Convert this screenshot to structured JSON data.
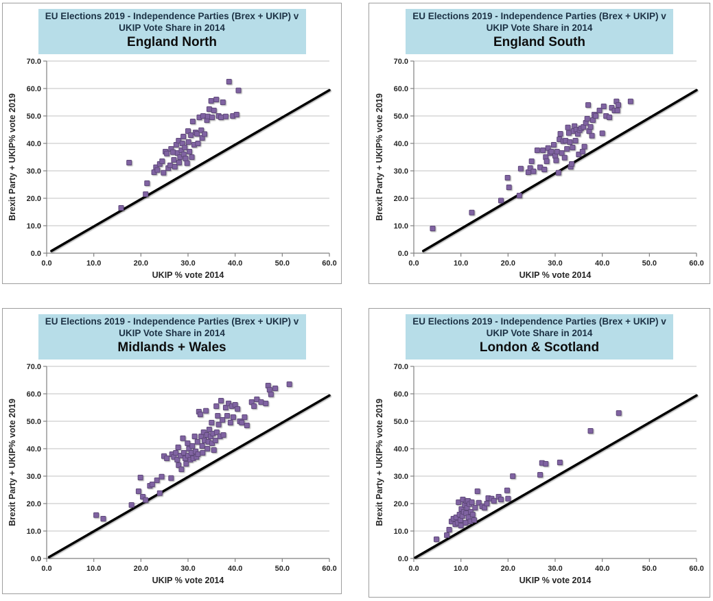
{
  "styles": {
    "header_bg": "#b7dde8",
    "header_text": "#1c3144",
    "region_text": "#0d0d0d",
    "marker_fill": "#8064a2",
    "marker_edge": "#5f497a",
    "grid_color": "#c0c0c0",
    "axis_color": "#808080",
    "tick_text": "#262626",
    "diag_color": "#000000",
    "panel_border": "#9d9d9d"
  },
  "chart_data": [
    {
      "type": "scatter",
      "title_line1": "EU Elections 2019  - Independence Parties (Brex + UKIP)  v",
      "title_line2": "UKIP  Vote Share in 2014",
      "region": "England North",
      "xlabel": "UKIP  % vote 2014",
      "ylabel": "Brexit Party + UKIP% vote  2019",
      "xlim": [
        0,
        60
      ],
      "ylim": [
        0,
        70
      ],
      "xtick_step": 10,
      "ytick_step": 10,
      "grid": "horizontal",
      "legend": "none",
      "diagonal": [
        [
          1,
          0.8
        ],
        [
          60,
          59.4
        ]
      ],
      "points": [
        [
          15.8,
          16.5
        ],
        [
          17.5,
          33
        ],
        [
          21,
          21.5
        ],
        [
          21.3,
          25.5
        ],
        [
          22.8,
          29.5
        ],
        [
          23.2,
          31.3
        ],
        [
          23.5,
          30.3
        ],
        [
          24,
          32.5
        ],
        [
          24.5,
          33.5
        ],
        [
          24.8,
          29.3
        ],
        [
          25.2,
          37
        ],
        [
          25.5,
          36.3
        ],
        [
          25.8,
          31
        ],
        [
          26.2,
          32
        ],
        [
          26.4,
          38
        ],
        [
          26.8,
          36.8
        ],
        [
          27,
          34
        ],
        [
          27.2,
          31.5
        ],
        [
          27.5,
          39.5
        ],
        [
          27.8,
          36.5
        ],
        [
          28,
          41
        ],
        [
          28.1,
          33
        ],
        [
          28.3,
          35
        ],
        [
          28.6,
          37.5
        ],
        [
          28.8,
          40
        ],
        [
          29,
          42.5
        ],
        [
          29.1,
          36
        ],
        [
          29.3,
          38.5
        ],
        [
          29.5,
          34.5
        ],
        [
          29.8,
          32.8
        ],
        [
          30,
          44.5
        ],
        [
          30.1,
          40.5
        ],
        [
          30.3,
          37
        ],
        [
          30.6,
          43
        ],
        [
          30.8,
          35
        ],
        [
          31,
          48
        ],
        [
          31.3,
          39.5
        ],
        [
          31.6,
          44
        ],
        [
          31.9,
          43.5
        ],
        [
          32.1,
          40
        ],
        [
          32.4,
          49.5
        ],
        [
          32.8,
          44.8
        ],
        [
          33,
          42
        ],
        [
          33.2,
          50
        ],
        [
          33.5,
          43.4
        ],
        [
          34,
          48.5
        ],
        [
          34.2,
          49.8
        ],
        [
          34.5,
          52.5
        ],
        [
          34.9,
          55.5
        ],
        [
          35.1,
          49.5
        ],
        [
          35.5,
          52
        ],
        [
          36,
          56
        ],
        [
          36.5,
          50
        ],
        [
          37,
          49.5
        ],
        [
          37.4,
          55
        ],
        [
          38,
          49.8
        ],
        [
          38.7,
          62.5
        ],
        [
          39.5,
          50
        ],
        [
          40.3,
          50.5
        ],
        [
          40.7,
          59.3
        ]
      ]
    },
    {
      "type": "scatter",
      "title_line1": "EU Elections 2019  - Independence Parties (Brex + UKIP)  v",
      "title_line2": "UKIP  Vote Share in 2014",
      "region": "England South",
      "xlabel": "UKIP  % vote 2014",
      "ylabel": "Brexit Party + UKIP% vote  2019",
      "xlim": [
        0,
        60
      ],
      "ylim": [
        0,
        70
      ],
      "xtick_step": 10,
      "ytick_step": 10,
      "grid": "horizontal",
      "legend": "none",
      "diagonal": [
        [
          2,
          0.8
        ],
        [
          60,
          59.4
        ]
      ],
      "points": [
        [
          4,
          9
        ],
        [
          12.3,
          14.8
        ],
        [
          18.5,
          19.2
        ],
        [
          19.9,
          27.5
        ],
        [
          20.2,
          24
        ],
        [
          22.4,
          21
        ],
        [
          22.7,
          30.8
        ],
        [
          24.3,
          29.5
        ],
        [
          24.7,
          31
        ],
        [
          25,
          33.5
        ],
        [
          25.4,
          29.8
        ],
        [
          26.2,
          37.5
        ],
        [
          26.8,
          31.3
        ],
        [
          27.4,
          37.5
        ],
        [
          27.7,
          30.5
        ],
        [
          28,
          35
        ],
        [
          28.2,
          33.5
        ],
        [
          28.5,
          38.3
        ],
        [
          28.9,
          36.5
        ],
        [
          29.2,
          37
        ],
        [
          29.7,
          39.5
        ],
        [
          30,
          35.5
        ],
        [
          30.2,
          33.8
        ],
        [
          30.4,
          37
        ],
        [
          30.7,
          29.3
        ],
        [
          30.9,
          41.5
        ],
        [
          31.1,
          43.5
        ],
        [
          31.4,
          36.5
        ],
        [
          31.7,
          40.8
        ],
        [
          32,
          34.8
        ],
        [
          32.2,
          41
        ],
        [
          32.5,
          38
        ],
        [
          32.7,
          45.8
        ],
        [
          32.9,
          43.8
        ],
        [
          33.1,
          40.5
        ],
        [
          33.3,
          31.5
        ],
        [
          33.5,
          32.5
        ],
        [
          33.7,
          38.5
        ],
        [
          33.9,
          44.5
        ],
        [
          34.1,
          46.3
        ],
        [
          34.3,
          41
        ],
        [
          34.5,
          45
        ],
        [
          34.8,
          43.5
        ],
        [
          35,
          36
        ],
        [
          35.2,
          44.8
        ],
        [
          35.5,
          45.5
        ],
        [
          35.8,
          37
        ],
        [
          36,
          46
        ],
        [
          36.2,
          38.8
        ],
        [
          36.5,
          47.5
        ],
        [
          36.8,
          49
        ],
        [
          37,
          54
        ],
        [
          37.2,
          44.5
        ],
        [
          37.5,
          46
        ],
        [
          37.8,
          42.8
        ],
        [
          38,
          48.5
        ],
        [
          38.3,
          50.5
        ],
        [
          38.6,
          50
        ],
        [
          39.4,
          52
        ],
        [
          40,
          43.7
        ],
        [
          40.3,
          53.5
        ],
        [
          40.8,
          50
        ],
        [
          41.5,
          49.5
        ],
        [
          42,
          53
        ],
        [
          42.6,
          52
        ],
        [
          43,
          55.3
        ],
        [
          43.2,
          52
        ],
        [
          43.4,
          54
        ],
        [
          46,
          55.3
        ]
      ]
    },
    {
      "type": "scatter",
      "title_line1": "EU Elections 2019  - Independence Parties (Brex + UKIP)  v",
      "title_line2": "UKIP  Vote Share in 2014",
      "region": "Midlands + Wales",
      "xlabel": "UKIP  % vote 2014",
      "ylabel": "Brexit Party + UKIP% vote  2019",
      "xlim": [
        0,
        60
      ],
      "ylim": [
        0,
        70
      ],
      "xtick_step": 10,
      "ytick_step": 10,
      "grid": "horizontal",
      "legend": "none",
      "diagonal": [
        [
          0.5,
          0.5
        ],
        [
          60,
          59.4
        ]
      ],
      "points": [
        [
          10.5,
          15.8
        ],
        [
          12,
          14.5
        ],
        [
          18,
          19.5
        ],
        [
          19.5,
          24.5
        ],
        [
          19.9,
          29.5
        ],
        [
          20.4,
          22.5
        ],
        [
          21,
          21.3
        ],
        [
          21.9,
          26.5
        ],
        [
          22.4,
          27
        ],
        [
          23.4,
          28.5
        ],
        [
          24,
          23.8
        ],
        [
          24.4,
          29.8
        ],
        [
          24.9,
          37.3
        ],
        [
          25.5,
          36.5
        ],
        [
          26.4,
          29.3
        ],
        [
          26.6,
          38
        ],
        [
          27,
          37
        ],
        [
          27.4,
          38.5
        ],
        [
          27.7,
          36
        ],
        [
          27.9,
          40.5
        ],
        [
          28,
          34
        ],
        [
          28.4,
          37.5
        ],
        [
          28.6,
          32.5
        ],
        [
          28.9,
          43.8
        ],
        [
          29.1,
          38.5
        ],
        [
          29.4,
          36.5
        ],
        [
          29.6,
          34.5
        ],
        [
          29.9,
          42
        ],
        [
          30,
          37.5
        ],
        [
          30.2,
          40
        ],
        [
          30.5,
          36
        ],
        [
          30.7,
          38.5
        ],
        [
          30.9,
          41
        ],
        [
          31.1,
          36.5
        ],
        [
          31.4,
          44.5
        ],
        [
          31.6,
          39
        ],
        [
          31.8,
          37
        ],
        [
          32,
          42.5
        ],
        [
          32.1,
          38
        ],
        [
          32.3,
          53.5
        ],
        [
          32.6,
          52.5
        ],
        [
          32.8,
          44.5
        ],
        [
          33,
          41
        ],
        [
          33.1,
          38.5
        ],
        [
          33.3,
          46
        ],
        [
          33.5,
          43
        ],
        [
          33.8,
          53.8
        ],
        [
          34,
          45
        ],
        [
          34.1,
          40
        ],
        [
          34.3,
          42.5
        ],
        [
          34.5,
          47
        ],
        [
          34.8,
          44.5
        ],
        [
          35,
          49.5
        ],
        [
          35.1,
          42
        ],
        [
          35.3,
          45.5
        ],
        [
          35.5,
          39.5
        ],
        [
          35.8,
          43
        ],
        [
          36,
          55.5
        ],
        [
          36.1,
          46
        ],
        [
          36.3,
          52
        ],
        [
          36.5,
          48.8
        ],
        [
          36.8,
          44.5
        ],
        [
          37,
          57.5
        ],
        [
          37.3,
          50.5
        ],
        [
          37.5,
          45
        ],
        [
          38,
          55
        ],
        [
          38.3,
          52
        ],
        [
          38.6,
          56.5
        ],
        [
          39,
          49.5
        ],
        [
          39.3,
          55.5
        ],
        [
          39.6,
          51.5
        ],
        [
          40,
          56
        ],
        [
          40.5,
          54.5
        ],
        [
          41,
          50
        ],
        [
          41.4,
          49.5
        ],
        [
          42,
          51.5
        ],
        [
          42.5,
          48.5
        ],
        [
          43.5,
          57
        ],
        [
          44,
          55.5
        ],
        [
          44.6,
          58
        ],
        [
          45.5,
          57
        ],
        [
          46.5,
          56.5
        ],
        [
          47,
          63
        ],
        [
          47.3,
          61.5
        ],
        [
          47.6,
          59.8
        ],
        [
          48.5,
          62
        ],
        [
          51.5,
          63.5
        ]
      ]
    },
    {
      "type": "scatter",
      "title_line1": "EU Elections 2019  - Independence Parties (Brex + UKIP)  v",
      "title_line2": "UKIP  Vote Share in 2014",
      "region": "London  & Scotland",
      "xlabel": "UKIP  % vote 2014",
      "ylabel": "Brexit Party + UKIP% vote  2019",
      "xlim": [
        0,
        60
      ],
      "ylim": [
        0,
        70
      ],
      "xtick_step": 10,
      "ytick_step": 10,
      "grid": "horizontal",
      "legend": "none",
      "diagonal": [
        [
          0.3,
          0.3
        ],
        [
          60,
          59.4
        ]
      ],
      "points": [
        [
          4.8,
          7
        ],
        [
          7,
          8.5
        ],
        [
          7.5,
          10.5
        ],
        [
          8,
          13.5
        ],
        [
          8.4,
          14.5
        ],
        [
          8.8,
          12.5
        ],
        [
          9,
          15
        ],
        [
          9.3,
          13
        ],
        [
          9.5,
          20.5
        ],
        [
          9.7,
          16
        ],
        [
          9.9,
          14
        ],
        [
          10,
          12
        ],
        [
          10.1,
          18
        ],
        [
          10.3,
          15.5
        ],
        [
          10.4,
          21.5
        ],
        [
          10.6,
          17
        ],
        [
          10.8,
          19.5
        ],
        [
          11,
          13
        ],
        [
          11.1,
          16.5
        ],
        [
          11.2,
          20.8
        ],
        [
          11.3,
          18.5
        ],
        [
          11.5,
          21
        ],
        [
          11.6,
          15
        ],
        [
          11.8,
          19.8
        ],
        [
          12,
          13.5
        ],
        [
          12.1,
          17
        ],
        [
          12.3,
          20.5
        ],
        [
          12.5,
          16
        ],
        [
          12.8,
          14
        ],
        [
          13,
          18.5
        ],
        [
          13.5,
          24.5
        ],
        [
          13.8,
          20.3
        ],
        [
          14.5,
          19
        ],
        [
          15,
          18.5
        ],
        [
          15.5,
          20
        ],
        [
          15.8,
          22
        ],
        [
          16.5,
          21.8
        ],
        [
          17,
          21
        ],
        [
          18,
          22.5
        ],
        [
          18.5,
          21.5
        ],
        [
          19.8,
          24.8
        ],
        [
          20,
          21.8
        ],
        [
          21,
          30
        ],
        [
          26.8,
          30.5
        ],
        [
          27.2,
          34.8
        ],
        [
          28,
          34.5
        ],
        [
          31,
          35
        ],
        [
          37.5,
          46.5
        ],
        [
          43.5,
          53
        ]
      ]
    }
  ]
}
